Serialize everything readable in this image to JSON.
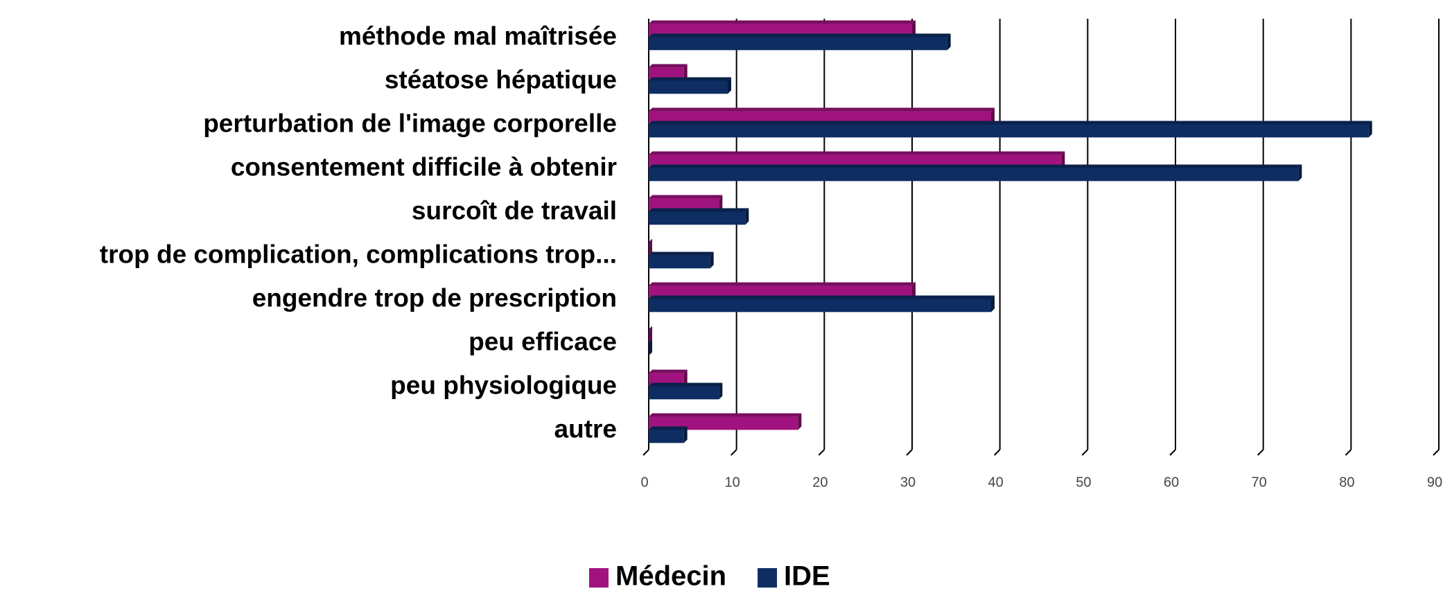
{
  "chart_data": {
    "type": "hbar",
    "categories": [
      "méthode mal maîtrisée",
      "stéatose hépatique",
      "perturbation de l'image corporelle",
      "consentement difficile à obtenir",
      "surcoît de travail",
      "trop de complication, complications trop...",
      "engendre trop de prescription",
      "peu efficace",
      "peu physiologique",
      "autre"
    ],
    "series": [
      {
        "name": "Médecin",
        "color": "#a0137e",
        "values": [
          30,
          4,
          39,
          47,
          8,
          0,
          30,
          0,
          4,
          17
        ]
      },
      {
        "name": "IDE",
        "color": "#0d2d63",
        "values": [
          34,
          9,
          82,
          74,
          11,
          7,
          39,
          0,
          8,
          4
        ]
      }
    ],
    "xlim": [
      0,
      90
    ],
    "xticks": [
      0,
      10,
      20,
      30,
      40,
      50,
      60,
      70,
      80,
      90
    ],
    "grid": true,
    "legend": "bottom"
  }
}
